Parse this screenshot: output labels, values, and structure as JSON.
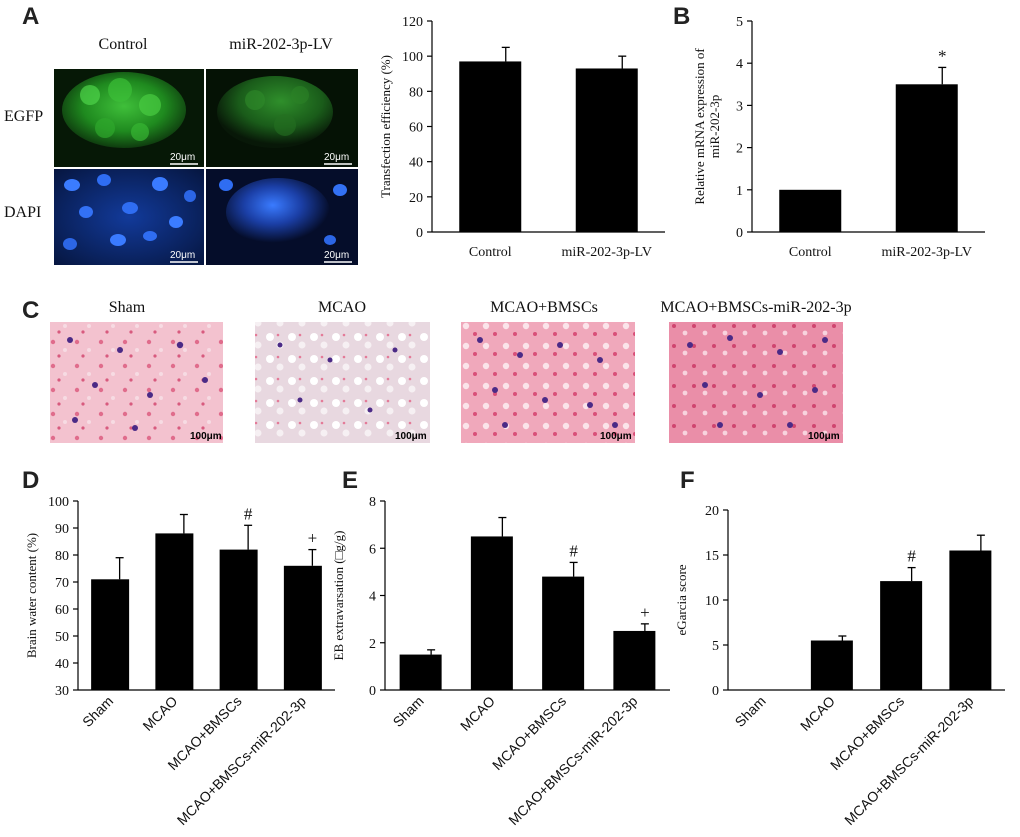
{
  "panels": {
    "A": "A",
    "B": "B",
    "C": "C",
    "D": "D",
    "E": "E",
    "F": "F"
  },
  "micrographs_A": {
    "col_control": "Control",
    "col_lv": "miR-202-3p-LV",
    "row_egfp": "EGFP",
    "row_dapi": "DAPI",
    "scale": "20μm"
  },
  "micrographs_C": {
    "labels": [
      "Sham",
      "MCAO",
      "MCAO+BMSCs",
      "MCAO+BMSCs-miR-202-3p"
    ],
    "scale": "100μm"
  },
  "colors": {
    "egfp": "#1f8a1f",
    "dapi": "#1b3fa6",
    "he_pink": "#e889a4",
    "nuclei": "#4b2a86"
  },
  "chart_data": [
    {
      "id": "A-transfection",
      "type": "bar",
      "categories": [
        "Control",
        "miR-202-3p-LV"
      ],
      "values": [
        97,
        93
      ],
      "errors": [
        8,
        7
      ],
      "ylabel": "Transfection efficiency (%)",
      "ylim": [
        0,
        120
      ],
      "yticks": [
        0,
        20,
        40,
        60,
        80,
        100,
        120
      ],
      "annotations": [
        "",
        ""
      ]
    },
    {
      "id": "B-mrna",
      "type": "bar",
      "categories": [
        "Control",
        "miR-202-3p-LV"
      ],
      "values": [
        1.0,
        3.5
      ],
      "errors": [
        0,
        0.4
      ],
      "ylabel_lines": [
        "Relative mRNA expression of",
        "miR-202-3p"
      ],
      "ylim": [
        0,
        5
      ],
      "yticks": [
        0,
        1,
        2,
        3,
        4,
        5
      ],
      "annotations": [
        "",
        "*"
      ]
    },
    {
      "id": "D-water",
      "type": "bar",
      "categories": [
        "Sham",
        "MCAO",
        "MCAO+BMSCs",
        "MCAO+BMSCs-miR-202-3p"
      ],
      "values": [
        71,
        88,
        82,
        76
      ],
      "errors": [
        8,
        7,
        9,
        6
      ],
      "ylabel": "Brain water content (%)",
      "ylim": [
        30,
        100
      ],
      "yticks": [
        30,
        40,
        50,
        60,
        70,
        80,
        90,
        100
      ],
      "annotations": [
        "",
        "",
        "#",
        "+"
      ]
    },
    {
      "id": "E-eb",
      "type": "bar",
      "categories": [
        "Sham",
        "MCAO",
        "MCAO+BMSCs",
        "MCAO+BMSCs-miR-202-3p"
      ],
      "values": [
        1.5,
        6.5,
        4.8,
        2.5
      ],
      "errors": [
        0.2,
        0.8,
        0.6,
        0.3
      ],
      "ylabel": "EB extravarsation (□g/g)",
      "ylim": [
        0,
        8
      ],
      "yticks": [
        0,
        2,
        4,
        6,
        8
      ],
      "annotations": [
        "",
        "",
        "#",
        "+"
      ]
    },
    {
      "id": "F-garcia",
      "type": "bar",
      "categories": [
        "Sham",
        "MCAO",
        "MCAO+BMSCs",
        "MCAO+BMSCs-miR-202-3p"
      ],
      "values": [
        0,
        5.5,
        12.1,
        15.5
      ],
      "errors": [
        0,
        0.5,
        1.5,
        1.7
      ],
      "ylabel": "eGarcia score",
      "ylim": [
        0,
        20
      ],
      "yticks": [
        0,
        5,
        10,
        15,
        20
      ],
      "annotations": [
        "",
        "",
        "#",
        ""
      ]
    }
  ]
}
